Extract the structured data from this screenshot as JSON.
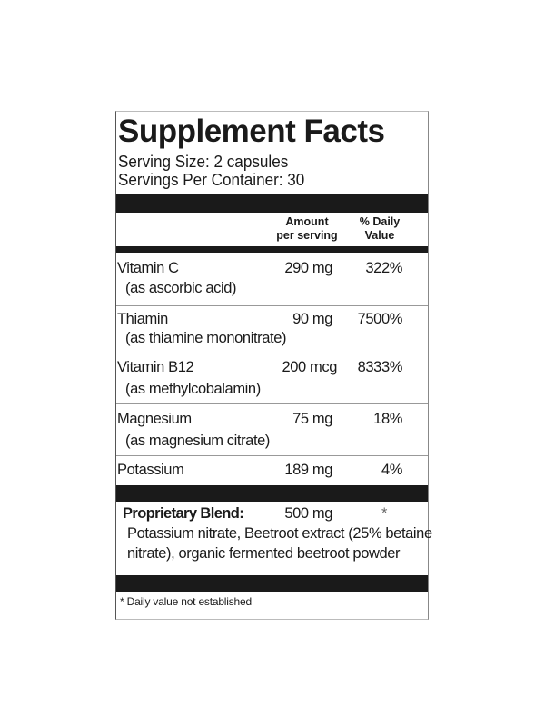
{
  "title": "Supplement Facts",
  "serving_size": "Serving Size: 2 capsules",
  "servings_per_container": "Servings Per Container: 30",
  "header": {
    "amount_line1": "Amount",
    "amount_line2": "per serving",
    "dv_line1": "% Daily",
    "dv_line2": "Value"
  },
  "nutrients": [
    {
      "name": "Vitamin C",
      "source": "(as ascorbic acid)",
      "amount": "290 mg",
      "dv": "322%"
    },
    {
      "name": "Thiamin",
      "source": "(as thiamine mononitrate)",
      "amount": "90 mg",
      "dv": "7500%"
    },
    {
      "name": "Vitamin B12",
      "source": "(as methylcobalamin)",
      "amount": "200 mcg",
      "dv": "8333%"
    },
    {
      "name": "Magnesium",
      "source": "(as magnesium citrate)",
      "amount": "75 mg",
      "dv": "18%"
    },
    {
      "name": "Potassium",
      "amount": "189 mg",
      "dv": "4%"
    }
  ],
  "blend": {
    "name": "Proprietary Blend:",
    "amount": "500 mg",
    "dv": "*",
    "ingredients_line1": "Potassium nitrate, Beetroot extract (25% betaine",
    "ingredients_line2": "nitrate), organic fermented beetroot powder"
  },
  "footnote": "* Daily value not established"
}
